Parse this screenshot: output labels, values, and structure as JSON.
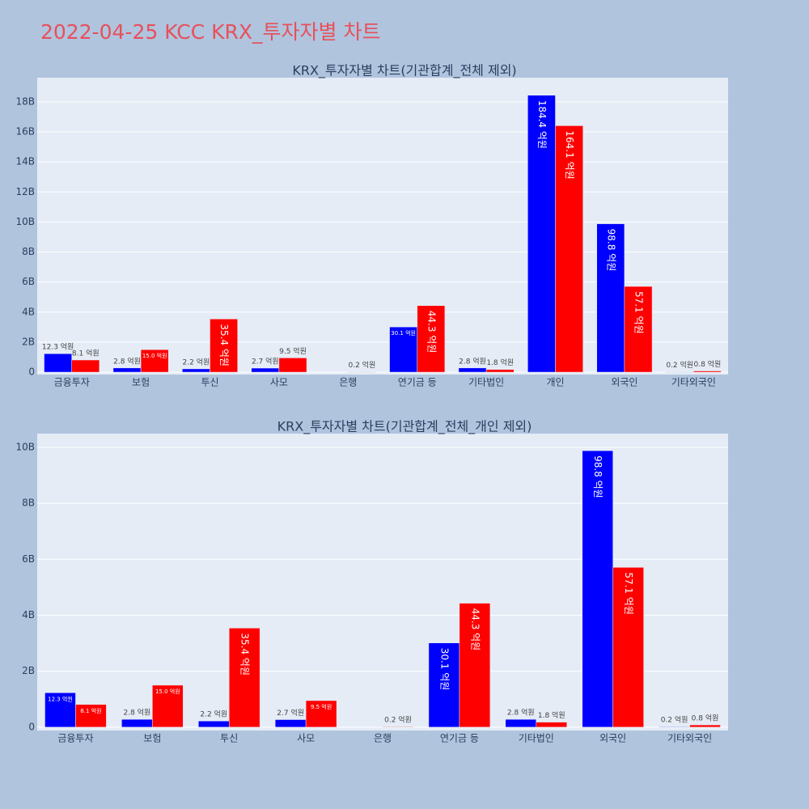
{
  "title": "2022-04-25 KCC KRX_투자자별 차트",
  "chart_data": [
    {
      "type": "bar",
      "title": "KRX_투자자별 차트(기관합계_전체 제외)",
      "categories": [
        "금융투자",
        "보험",
        "투신",
        "사모",
        "은행",
        "연기금 등",
        "기타법인",
        "개인",
        "외국인",
        "기타외국인"
      ],
      "series": [
        {
          "color": "#0000ff",
          "values": [
            1230000000,
            280000000,
            220000000,
            270000000,
            null,
            3010000000,
            280000000,
            18440000000,
            9880000000,
            20000000
          ],
          "value_labels": [
            "12.3 억원",
            "2.8 억원",
            "2.2 억원",
            "2.7 억원",
            null,
            "30.1 억원",
            "2.8 억원",
            "184.4 억원",
            "98.8 억원",
            "0.2 억원"
          ]
        },
        {
          "color": "#ff0000",
          "values": [
            810000000,
            1500000000,
            3540000000,
            950000000,
            20000000,
            4430000000,
            180000000,
            16410000000,
            5710000000,
            80000000
          ],
          "value_labels": [
            "8.1 억원",
            "15.0 억원",
            "35.4 억원",
            "9.5 억원",
            "0.2 억원",
            "44.3 억원",
            "1.8 억원",
            "164.1 억원",
            "57.1 억원",
            "0.8 억원"
          ]
        }
      ],
      "ylim": [
        -160000000,
        19610000000
      ],
      "yticks": [
        0,
        {
          "value": 2000000000,
          "label": "2B"
        },
        {
          "value": 4000000000,
          "label": "4B"
        },
        {
          "value": 6000000000,
          "label": "6B"
        },
        {
          "value": 8000000000,
          "label": "8B"
        },
        {
          "value": 10000000000,
          "label": "10B"
        },
        {
          "value": 12000000000,
          "label": "12B"
        },
        {
          "value": 14000000000,
          "label": "14B"
        },
        {
          "value": 16000000000,
          "label": "16B"
        },
        {
          "value": 18000000000,
          "label": "18B"
        }
      ],
      "grid": true
    },
    {
      "type": "bar",
      "title": "KRX_투자자별 차트(기관합계_전체_개인 제외)",
      "categories": [
        "금융투자",
        "보험",
        "투신",
        "사모",
        "은행",
        "연기금 등",
        "기타법인",
        "외국인",
        "기타외국인"
      ],
      "series": [
        {
          "color": "#0000ff",
          "values": [
            1230000000,
            280000000,
            220000000,
            270000000,
            null,
            3010000000,
            280000000,
            9880000000,
            20000000
          ],
          "value_labels": [
            "12.3 억원",
            "2.8 억원",
            "2.2 억원",
            "2.7 억원",
            null,
            "30.1 억원",
            "2.8 억원",
            "98.8 억원",
            "0.2 억원"
          ]
        },
        {
          "color": "#ff0000",
          "values": [
            810000000,
            1500000000,
            3540000000,
            950000000,
            20000000,
            4430000000,
            180000000,
            5710000000,
            80000000
          ],
          "value_labels": [
            "8.1 억원",
            "15.0 억원",
            "35.4 억원",
            "9.5 억원",
            "0.2 억원",
            "44.3 억원",
            "1.8 억원",
            "57.1 억원",
            "0.8 억원"
          ]
        }
      ],
      "ylim": [
        -120000000,
        10490000000
      ],
      "yticks": [
        0,
        {
          "value": 2000000000,
          "label": "2B"
        },
        {
          "value": 4000000000,
          "label": "4B"
        },
        {
          "value": 6000000000,
          "label": "6B"
        },
        {
          "value": 8000000000,
          "label": "8B"
        },
        {
          "value": 10000000000,
          "label": "10B"
        }
      ],
      "grid": true
    }
  ]
}
